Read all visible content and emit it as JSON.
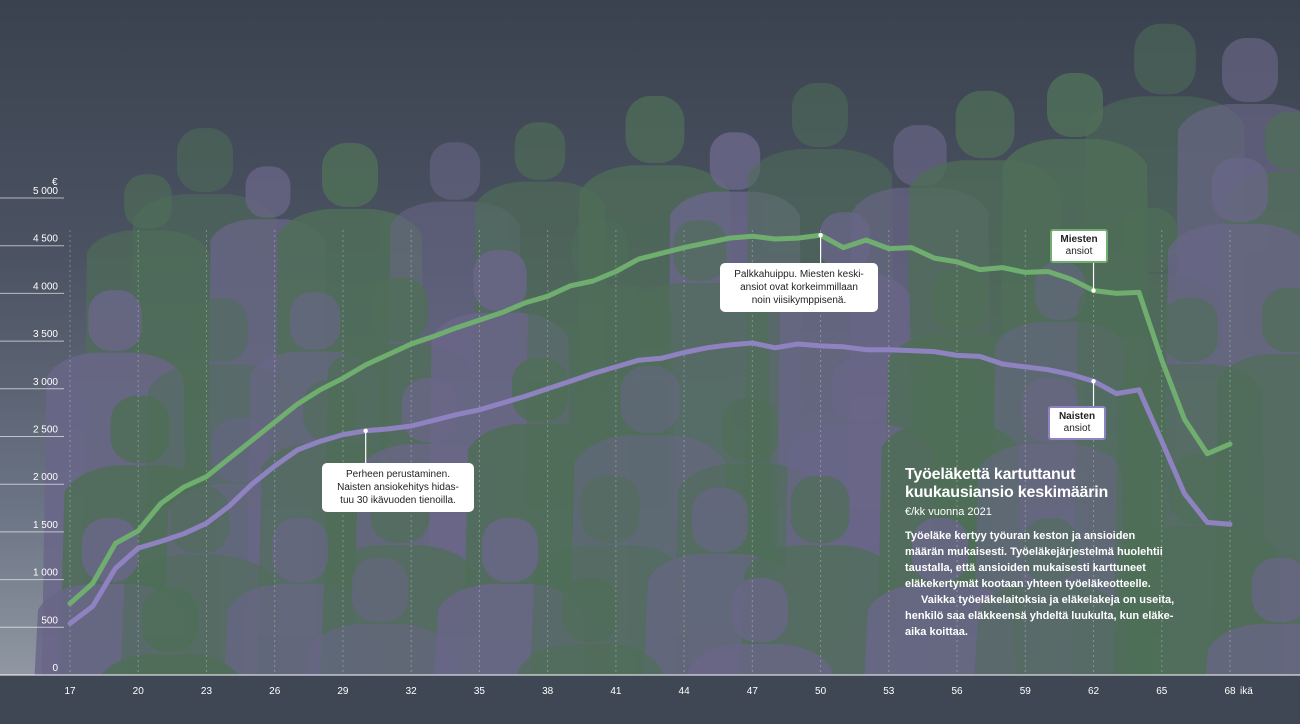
{
  "chart_data": {
    "type": "line",
    "ylabel": "€",
    "xlabel": "ikä",
    "ylim": [
      0,
      5000
    ],
    "xlim": [
      17,
      68
    ],
    "y_ticks": [
      "0",
      "500",
      "1 000",
      "1 500",
      "2 000",
      "2 500",
      "3 000",
      "3 500",
      "4 000",
      "4 500",
      "5 000"
    ],
    "x_ticks": [
      "17",
      "20",
      "23",
      "26",
      "29",
      "32",
      "35",
      "38",
      "41",
      "44",
      "47",
      "50",
      "53",
      "56",
      "59",
      "62",
      "65",
      "68"
    ],
    "grid": "vertical",
    "series": [
      {
        "name": "Miesten ansiot",
        "color": "#6fae6f",
        "x": [
          17,
          18,
          19,
          20,
          21,
          22,
          23,
          24,
          25,
          26,
          27,
          28,
          29,
          30,
          31,
          32,
          33,
          34,
          35,
          36,
          37,
          38,
          39,
          40,
          41,
          42,
          43,
          44,
          45,
          46,
          47,
          48,
          49,
          50,
          51,
          52,
          53,
          54,
          55,
          56,
          57,
          58,
          59,
          60,
          61,
          62,
          63,
          64,
          65,
          66,
          67,
          68
        ],
        "values": [
          750,
          960,
          1380,
          1510,
          1800,
          1970,
          2080,
          2270,
          2460,
          2650,
          2840,
          2990,
          3110,
          3250,
          3360,
          3470,
          3550,
          3640,
          3720,
          3800,
          3900,
          3970,
          4080,
          4130,
          4230,
          4360,
          4420,
          4480,
          4530,
          4580,
          4600,
          4570,
          4580,
          4610,
          4480,
          4560,
          4470,
          4480,
          4370,
          4330,
          4250,
          4270,
          4220,
          4230,
          4150,
          4030,
          4000,
          4010,
          3300,
          2680,
          2320,
          2420
        ]
      },
      {
        "name": "Naisten ansiot",
        "color": "#8f82c0",
        "x": [
          17,
          18,
          19,
          20,
          21,
          22,
          23,
          24,
          25,
          26,
          27,
          28,
          29,
          30,
          31,
          32,
          33,
          34,
          35,
          36,
          37,
          38,
          39,
          40,
          41,
          42,
          43,
          44,
          45,
          46,
          47,
          48,
          49,
          50,
          51,
          52,
          53,
          54,
          55,
          56,
          57,
          58,
          59,
          60,
          61,
          62,
          63,
          64,
          65,
          66,
          67,
          68
        ],
        "values": [
          540,
          720,
          1120,
          1330,
          1400,
          1480,
          1590,
          1770,
          2000,
          2190,
          2360,
          2450,
          2520,
          2560,
          2580,
          2610,
          2670,
          2730,
          2780,
          2850,
          2920,
          3000,
          3080,
          3160,
          3230,
          3300,
          3320,
          3380,
          3430,
          3460,
          3480,
          3430,
          3470,
          3450,
          3440,
          3410,
          3410,
          3400,
          3390,
          3350,
          3340,
          3260,
          3230,
          3200,
          3150,
          3080,
          2950,
          2990,
          2450,
          1900,
          1600,
          1580
        ]
      }
    ],
    "annotations": [
      {
        "x": 30,
        "series": "Naisten ansiot",
        "text_lines": [
          "Perheen perustaminen.",
          "Naisten ansiokehitys hidas-",
          "tuu 30 ikävuoden tienoilla."
        ]
      },
      {
        "x": 50,
        "series": "Miesten ansiot",
        "text_lines": [
          "Palkkahuippu. Miesten keski-",
          "ansiot ovat korkeimmillaan",
          "noin viisikymppisenä."
        ]
      }
    ],
    "legend": [
      {
        "bold": "Miesten",
        "rest": "ansiot",
        "x": 62,
        "series": "Miesten ansiot"
      },
      {
        "bold": "Naisten",
        "rest": "ansiot",
        "x": 62,
        "series": "Naisten ansiot"
      }
    ]
  },
  "info": {
    "title_line1": "Työeläkettä kartuttanut",
    "title_line2": "kuukausiansio keskimäärin",
    "subtitle": "€/kk vuonna 2021",
    "body_lines": [
      "Työeläke kertyy  työuran keston ja ansioiden",
      "määrän mukaisesti. Työeläkejärjestelmä huolehtii",
      "taustalla, että ansioiden mukaisesti karttuneet",
      "eläkekertymät kootaan yhteen työeläkeotteelle."
    ],
    "body_lines2": [
      "Vaikka työeläkelaitoksia ja eläkelakeja on useita,",
      "henkilö saa eläkkeensä yhdeltä luukulta, kun eläke-",
      "aika koittaa."
    ]
  },
  "colors": {
    "background_top": "#3a424f",
    "men_line": "#6fae6f",
    "women_line": "#8f82c0",
    "silhouette_green": "#4f6e58",
    "silhouette_purple": "#6a6688"
  }
}
